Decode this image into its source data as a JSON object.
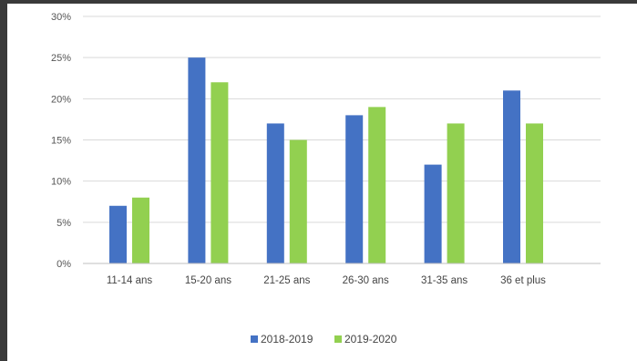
{
  "chart_data": {
    "type": "bar",
    "categories": [
      "11-14 ans",
      "15-20 ans",
      "21-25 ans",
      "26-30 ans",
      "31-35 ans",
      "36 et plus"
    ],
    "series": [
      {
        "name": "2018-2019",
        "color": "#4472C4",
        "values": [
          7,
          25,
          17,
          18,
          12,
          21
        ]
      },
      {
        "name": "2019-2020",
        "color": "#92D050",
        "values": [
          8,
          22,
          15,
          19,
          17,
          17
        ]
      }
    ],
    "yticks": [
      "0%",
      "5%",
      "10%",
      "15%",
      "20%",
      "25%",
      "30%"
    ],
    "ylim": [
      0,
      30
    ],
    "grid": true,
    "legend_position": "bottom-center",
    "title": "",
    "xlabel": "",
    "ylabel": ""
  }
}
